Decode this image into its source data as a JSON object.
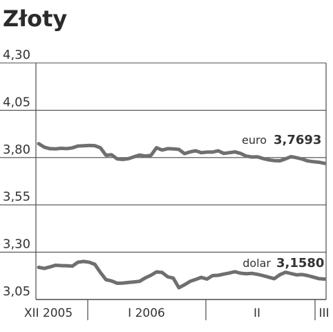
{
  "chart_data": {
    "type": "line",
    "title": "Złoty",
    "y_ticks": [
      "4,30",
      "4,05",
      "3,80",
      "3,55",
      "3,30",
      "3,05"
    ],
    "y_tick_values": [
      4.3,
      4.05,
      3.8,
      3.55,
      3.3,
      3.05
    ],
    "ylim": [
      3.05,
      4.3
    ],
    "x_ticks": [
      "XII 2005",
      "I 2006",
      "II",
      "III"
    ],
    "grid": true,
    "colors": {
      "line": "#6f6f6f",
      "grid": "#4a4a4a",
      "text": "#333333"
    },
    "series": [
      {
        "name": "euro",
        "last_label": "3,7693",
        "values": [
          3.873,
          3.855,
          3.847,
          3.846,
          3.849,
          3.847,
          3.851,
          3.861,
          3.862,
          3.864,
          3.863,
          3.852,
          3.812,
          3.815,
          3.793,
          3.79,
          3.794,
          3.804,
          3.813,
          3.808,
          3.811,
          3.852,
          3.84,
          3.847,
          3.846,
          3.843,
          3.821,
          3.83,
          3.836,
          3.826,
          3.829,
          3.829,
          3.836,
          3.822,
          3.826,
          3.83,
          3.822,
          3.808,
          3.803,
          3.804,
          3.795,
          3.788,
          3.784,
          3.783,
          3.793,
          3.805,
          3.799,
          3.792,
          3.782,
          3.778,
          3.775,
          3.7693
        ]
      },
      {
        "name": "dolar",
        "last_label": "3,1580",
        "values": [
          3.22,
          3.214,
          3.222,
          3.231,
          3.229,
          3.228,
          3.226,
          3.247,
          3.251,
          3.247,
          3.236,
          3.193,
          3.155,
          3.148,
          3.136,
          3.137,
          3.14,
          3.143,
          3.146,
          3.164,
          3.178,
          3.196,
          3.193,
          3.17,
          3.163,
          3.112,
          3.128,
          3.146,
          3.156,
          3.167,
          3.158,
          3.176,
          3.178,
          3.184,
          3.19,
          3.197,
          3.189,
          3.186,
          3.188,
          3.183,
          3.176,
          3.168,
          3.16,
          3.181,
          3.194,
          3.187,
          3.18,
          3.182,
          3.176,
          3.168,
          3.16,
          3.158
        ]
      }
    ]
  }
}
